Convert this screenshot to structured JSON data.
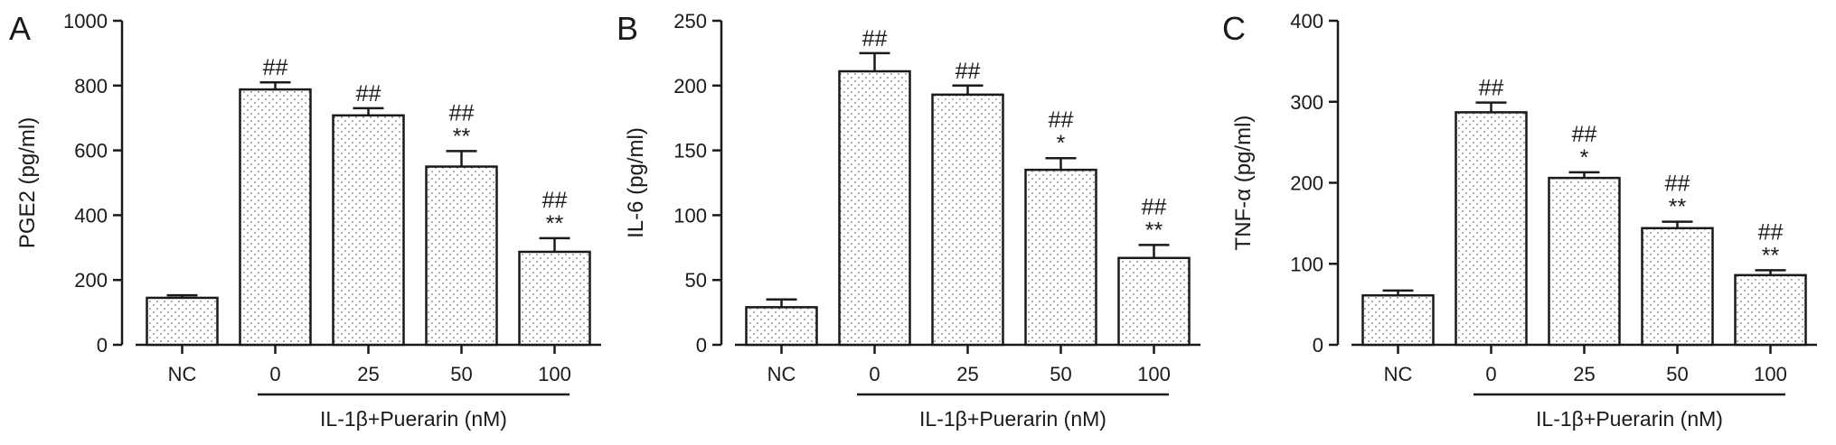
{
  "chart_data": [
    {
      "type": "bar",
      "panel": "A",
      "ylabel": "PGE2 (pg/ml)",
      "ylim": [
        0,
        1000
      ],
      "yticks": [
        0,
        200,
        400,
        600,
        800,
        1000
      ],
      "categories": [
        "NC",
        "0",
        "25",
        "50",
        "100"
      ],
      "values": [
        145,
        788,
        708,
        550,
        287
      ],
      "errors": [
        8,
        22,
        22,
        48,
        42
      ],
      "annotations": [
        [],
        [
          "##"
        ],
        [
          "##"
        ],
        [
          "##",
          "**"
        ],
        [
          "##",
          "**"
        ]
      ],
      "group_label": "IL-1β+Puerarin (nM)"
    },
    {
      "type": "bar",
      "panel": "B",
      "ylabel": "IL-6 (pg/ml)",
      "ylim": [
        0,
        250
      ],
      "yticks": [
        0,
        50,
        100,
        150,
        200,
        250
      ],
      "categories": [
        "NC",
        "0",
        "25",
        "50",
        "100"
      ],
      "values": [
        29,
        211,
        193,
        135,
        67
      ],
      "errors": [
        6,
        14,
        7,
        9,
        10
      ],
      "annotations": [
        [],
        [
          "##"
        ],
        [
          "##"
        ],
        [
          "##",
          "*"
        ],
        [
          "##",
          "**"
        ]
      ],
      "group_label": "IL-1β+Puerarin (nM)"
    },
    {
      "type": "bar",
      "panel": "C",
      "ylabel": "TNF-α (pg/ml)",
      "ylim": [
        0,
        400
      ],
      "yticks": [
        0,
        100,
        200,
        300,
        400
      ],
      "categories": [
        "NC",
        "0",
        "25",
        "50",
        "100"
      ],
      "values": [
        61,
        287,
        206,
        144,
        86
      ],
      "errors": [
        6,
        12,
        7,
        8,
        6
      ],
      "annotations": [
        [],
        [
          "##"
        ],
        [
          "##",
          "*"
        ],
        [
          "##",
          "**"
        ],
        [
          "##",
          "**"
        ]
      ],
      "group_label": "IL-1β+Puerarin (nM)"
    }
  ]
}
